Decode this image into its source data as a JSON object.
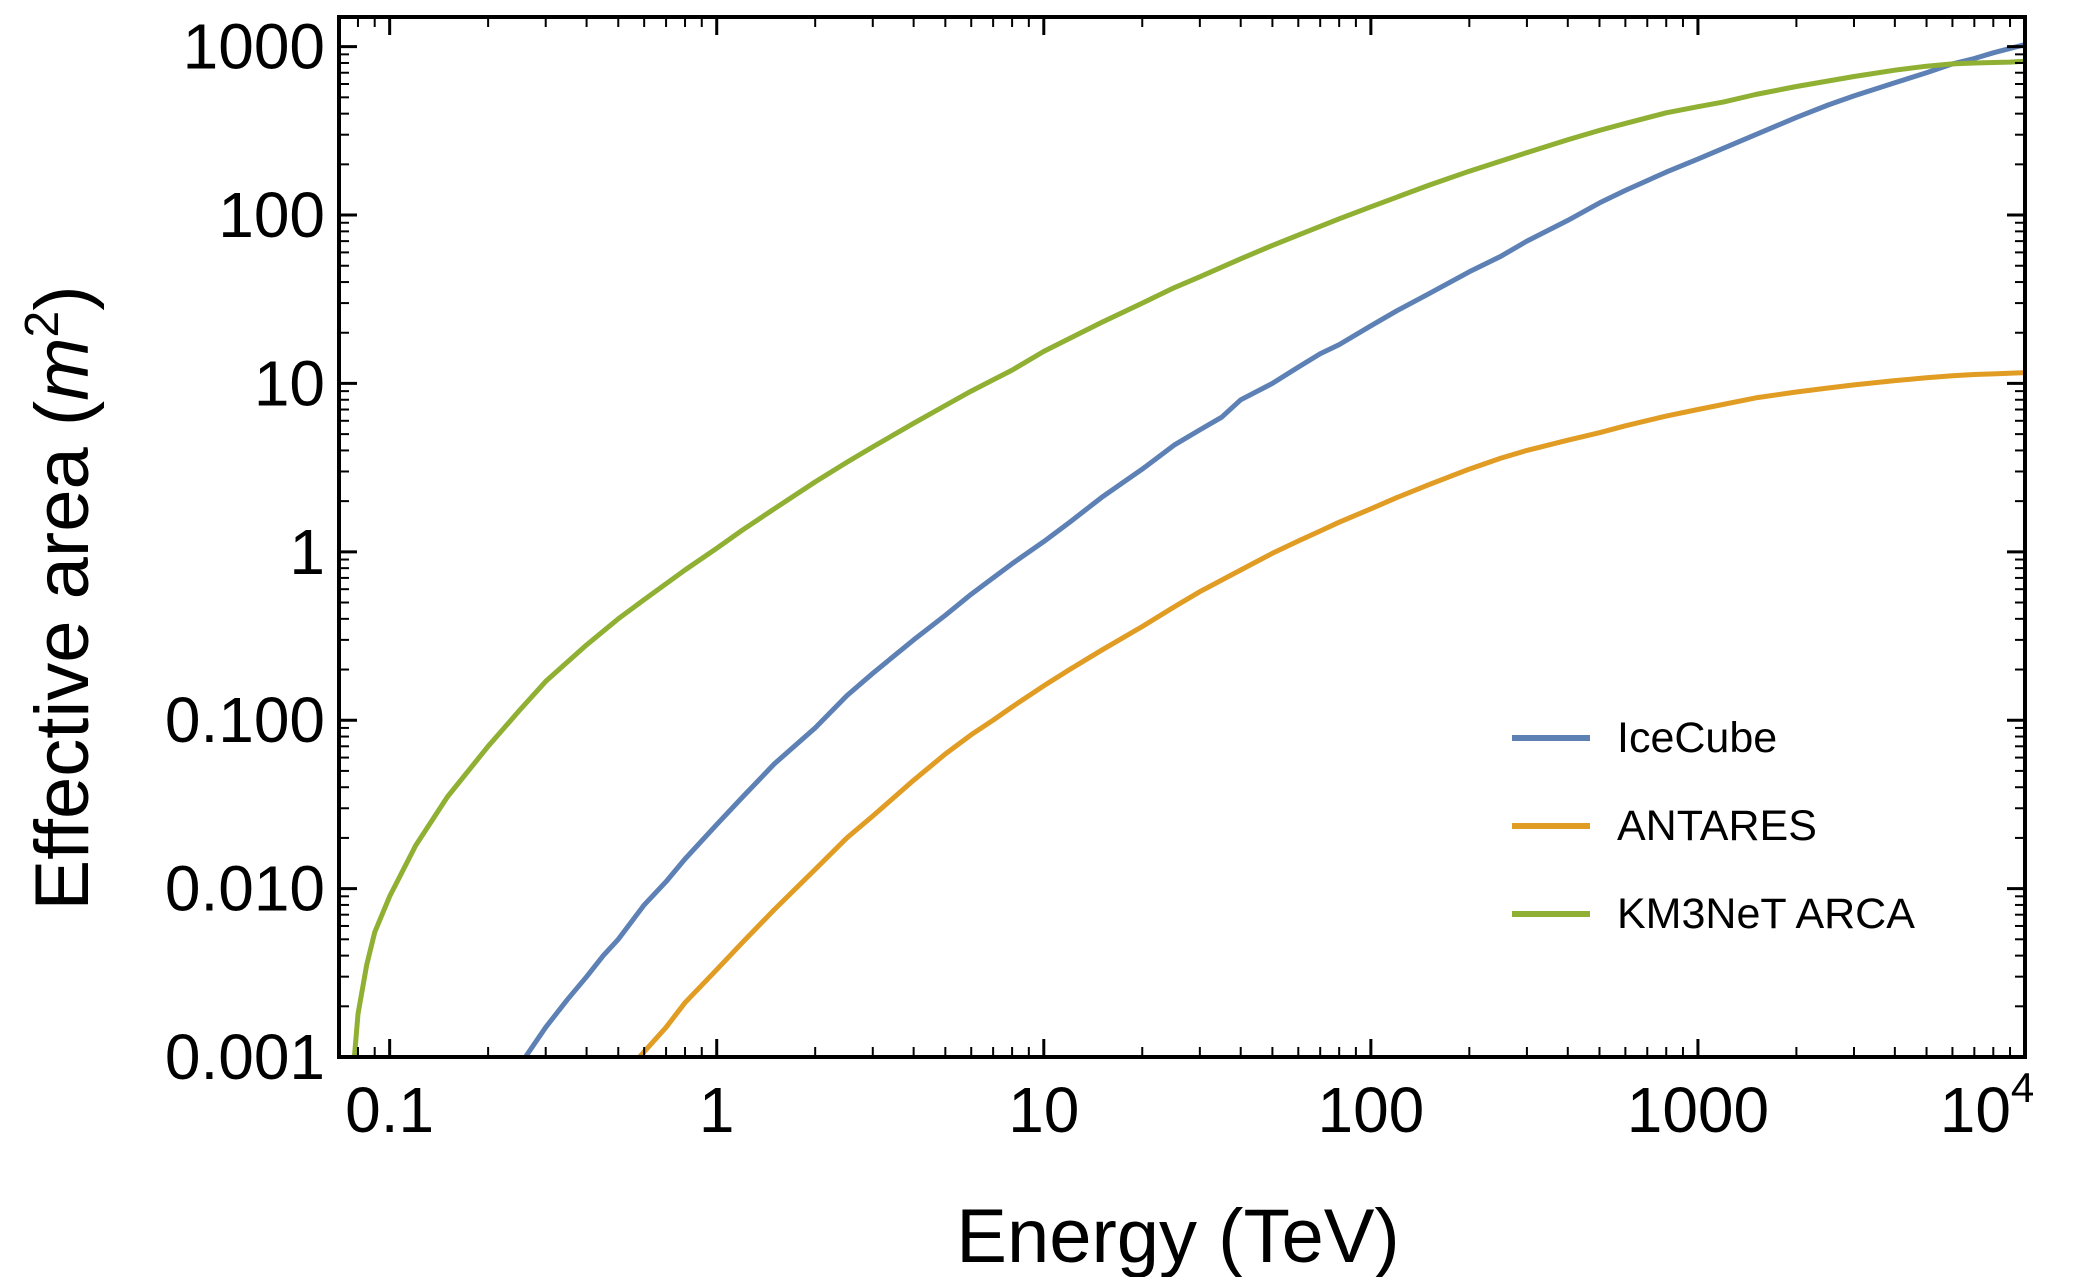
{
  "chart_data": {
    "type": "line",
    "x_scale": "log",
    "y_scale": "log",
    "xlabel": "Energy (TeV)",
    "ylabel_main": "Effective area (",
    "ylabel_var": "m",
    "ylabel_sup": "2",
    "ylabel_end": ")",
    "xlim": [
      0.07,
      10000
    ],
    "ylim": [
      0.001,
      1500
    ],
    "x_ticks": [
      {
        "value": 0.1,
        "label": "0.1"
      },
      {
        "value": 1,
        "label": "1"
      },
      {
        "value": 10,
        "label": "10"
      },
      {
        "value": 100,
        "label": "100"
      },
      {
        "value": 1000,
        "label": "1000"
      },
      {
        "value": 10000,
        "label": "10",
        "sup": "4"
      }
    ],
    "y_ticks": [
      {
        "value": 0.001,
        "label": "0.001"
      },
      {
        "value": 0.01,
        "label": "0.010"
      },
      {
        "value": 0.1,
        "label": "0.100"
      },
      {
        "value": 1,
        "label": "1"
      },
      {
        "value": 10,
        "label": "10"
      },
      {
        "value": 100,
        "label": "100"
      },
      {
        "value": 1000,
        "label": "1000"
      }
    ],
    "series": [
      {
        "name": "IceCube",
        "color": "#5e81b5",
        "points": [
          [
            0.26,
            0.001
          ],
          [
            0.3,
            0.0015
          ],
          [
            0.35,
            0.0022
          ],
          [
            0.4,
            0.003
          ],
          [
            0.45,
            0.004
          ],
          [
            0.5,
            0.005
          ],
          [
            0.6,
            0.008
          ],
          [
            0.7,
            0.011
          ],
          [
            0.8,
            0.015
          ],
          [
            1,
            0.024
          ],
          [
            1.2,
            0.035
          ],
          [
            1.5,
            0.055
          ],
          [
            2,
            0.09
          ],
          [
            2.5,
            0.14
          ],
          [
            3,
            0.19
          ],
          [
            4,
            0.3
          ],
          [
            5,
            0.42
          ],
          [
            6,
            0.56
          ],
          [
            7,
            0.7
          ],
          [
            8,
            0.85
          ],
          [
            10,
            1.15
          ],
          [
            12,
            1.5
          ],
          [
            15,
            2.1
          ],
          [
            20,
            3.1
          ],
          [
            25,
            4.3
          ],
          [
            30,
            5.3
          ],
          [
            35,
            6.3
          ],
          [
            40,
            8.0
          ],
          [
            50,
            10
          ],
          [
            60,
            12.5
          ],
          [
            70,
            15
          ],
          [
            80,
            17
          ],
          [
            100,
            22
          ],
          [
            120,
            27
          ],
          [
            150,
            34
          ],
          [
            200,
            46
          ],
          [
            250,
            57
          ],
          [
            300,
            70
          ],
          [
            400,
            93
          ],
          [
            500,
            118
          ],
          [
            600,
            140
          ],
          [
            800,
            180
          ],
          [
            1000,
            215
          ],
          [
            1500,
            300
          ],
          [
            2000,
            380
          ],
          [
            2500,
            450
          ],
          [
            3000,
            510
          ],
          [
            4000,
            610
          ],
          [
            5000,
            700
          ],
          [
            6000,
            790
          ],
          [
            7000,
            850
          ],
          [
            8000,
            920
          ],
          [
            10000,
            1030
          ]
        ]
      },
      {
        "name": "ANTARES",
        "color": "#e19c24",
        "points": [
          [
            0.58,
            0.001
          ],
          [
            0.7,
            0.0015
          ],
          [
            0.8,
            0.0021
          ],
          [
            1,
            0.0033
          ],
          [
            1.2,
            0.0048
          ],
          [
            1.5,
            0.0075
          ],
          [
            2,
            0.013
          ],
          [
            2.5,
            0.02
          ],
          [
            3,
            0.027
          ],
          [
            4,
            0.044
          ],
          [
            5,
            0.063
          ],
          [
            6,
            0.082
          ],
          [
            7,
            0.1
          ],
          [
            8,
            0.12
          ],
          [
            10,
            0.16
          ],
          [
            12,
            0.2
          ],
          [
            15,
            0.26
          ],
          [
            20,
            0.36
          ],
          [
            25,
            0.47
          ],
          [
            30,
            0.58
          ],
          [
            40,
            0.78
          ],
          [
            50,
            0.98
          ],
          [
            60,
            1.16
          ],
          [
            70,
            1.33
          ],
          [
            80,
            1.5
          ],
          [
            100,
            1.8
          ],
          [
            120,
            2.1
          ],
          [
            150,
            2.5
          ],
          [
            200,
            3.1
          ],
          [
            250,
            3.6
          ],
          [
            300,
            4.0
          ],
          [
            400,
            4.6
          ],
          [
            500,
            5.1
          ],
          [
            600,
            5.6
          ],
          [
            800,
            6.4
          ],
          [
            1000,
            7.0
          ],
          [
            1500,
            8.2
          ],
          [
            2000,
            8.9
          ],
          [
            2500,
            9.4
          ],
          [
            3000,
            9.8
          ],
          [
            4000,
            10.4
          ],
          [
            5000,
            10.8
          ],
          [
            6000,
            11.1
          ],
          [
            7000,
            11.3
          ],
          [
            8000,
            11.4
          ],
          [
            10000,
            11.6
          ]
        ]
      },
      {
        "name": "KM3NeT ARCA",
        "color": "#8fb032",
        "points": [
          [
            0.078,
            0.001
          ],
          [
            0.08,
            0.0018
          ],
          [
            0.085,
            0.0035
          ],
          [
            0.09,
            0.0055
          ],
          [
            0.1,
            0.009
          ],
          [
            0.12,
            0.018
          ],
          [
            0.15,
            0.035
          ],
          [
            0.2,
            0.07
          ],
          [
            0.25,
            0.115
          ],
          [
            0.3,
            0.17
          ],
          [
            0.4,
            0.28
          ],
          [
            0.5,
            0.4
          ],
          [
            0.6,
            0.52
          ],
          [
            0.8,
            0.78
          ],
          [
            1,
            1.05
          ],
          [
            1.2,
            1.35
          ],
          [
            1.5,
            1.8
          ],
          [
            2,
            2.6
          ],
          [
            2.5,
            3.4
          ],
          [
            3,
            4.2
          ],
          [
            4,
            5.8
          ],
          [
            5,
            7.4
          ],
          [
            6,
            9.0
          ],
          [
            8,
            12
          ],
          [
            10,
            15.5
          ],
          [
            12,
            18.5
          ],
          [
            15,
            23
          ],
          [
            20,
            30
          ],
          [
            25,
            37
          ],
          [
            30,
            43
          ],
          [
            40,
            55
          ],
          [
            50,
            66
          ],
          [
            60,
            76
          ],
          [
            80,
            95
          ],
          [
            100,
            112
          ],
          [
            150,
            150
          ],
          [
            200,
            182
          ],
          [
            300,
            235
          ],
          [
            400,
            280
          ],
          [
            500,
            318
          ],
          [
            600,
            350
          ],
          [
            800,
            405
          ],
          [
            1000,
            440
          ],
          [
            1200,
            470
          ],
          [
            1500,
            520
          ],
          [
            2000,
            580
          ],
          [
            2500,
            625
          ],
          [
            3000,
            665
          ],
          [
            4000,
            725
          ],
          [
            5000,
            765
          ],
          [
            6000,
            790
          ],
          [
            7000,
            800
          ],
          [
            8000,
            805
          ],
          [
            9000,
            810
          ],
          [
            10000,
            820
          ]
        ]
      }
    ],
    "legend": [
      {
        "label": "IceCube",
        "color": "#5e81b5"
      },
      {
        "label": "ANTARES",
        "color": "#e19c24"
      },
      {
        "label": "KM3NeT ARCA",
        "color": "#8fb032"
      }
    ],
    "legend_position": "lower-right",
    "grid": false
  }
}
